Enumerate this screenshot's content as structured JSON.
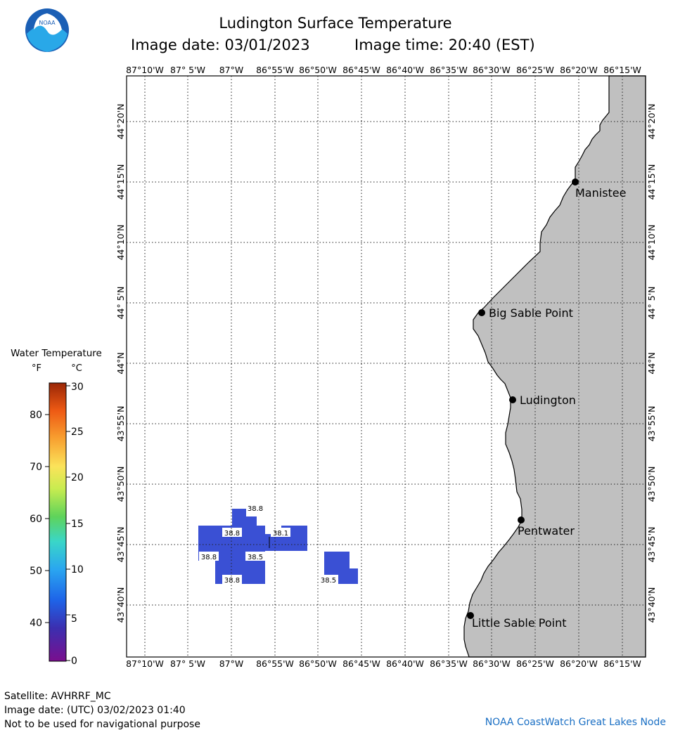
{
  "header": {
    "title": "Ludington Surface Temperature",
    "image_date": "Image date: 03/01/2023",
    "image_time": "Image time: 20:40 (EST)",
    "logo_text": "NOAA"
  },
  "map": {
    "lon_ticks": [
      "87°10'W",
      "87° 5'W",
      "87°W",
      "86°55'W",
      "86°50'W",
      "86°45'W",
      "86°40'W",
      "86°35'W",
      "86°30'W",
      "86°25'W",
      "86°20'W",
      "86°15'W"
    ],
    "lat_ticks": [
      "44°20'N",
      "44°15'N",
      "44°10'N",
      "44° 5'N",
      "44°N",
      "43°55'N",
      "43°50'N",
      "43°45'N",
      "43°40'N"
    ],
    "land_color": "#c0c0c0",
    "water_color": "#ffffff",
    "places": [
      {
        "name": "Manistee"
      },
      {
        "name": "Big Sable Point"
      },
      {
        "name": "Ludington"
      },
      {
        "name": "Pentwater"
      },
      {
        "name": "Little Sable Point"
      }
    ],
    "temperature_labels": [
      "38.8",
      "38.8",
      "38.1",
      "38.8",
      "38.5",
      "38.8",
      "38.5"
    ],
    "cell_color": "#3a50d4"
  },
  "legend": {
    "title": "Water Temperature",
    "f_unit": "°F",
    "c_unit": "°C",
    "f_ticks": [
      "80",
      "70",
      "60",
      "50",
      "40"
    ],
    "c_ticks": [
      "30",
      "25",
      "20",
      "15",
      "10",
      "5",
      "0"
    ]
  },
  "footer": {
    "satellite": "Satellite: AVHRRF_MC",
    "utc_date": "Image date: (UTC) 03/02/2023  01:40",
    "disclaimer": "Not to be used for navigational purpose",
    "credit": "NOAA CoastWatch Great Lakes Node"
  }
}
